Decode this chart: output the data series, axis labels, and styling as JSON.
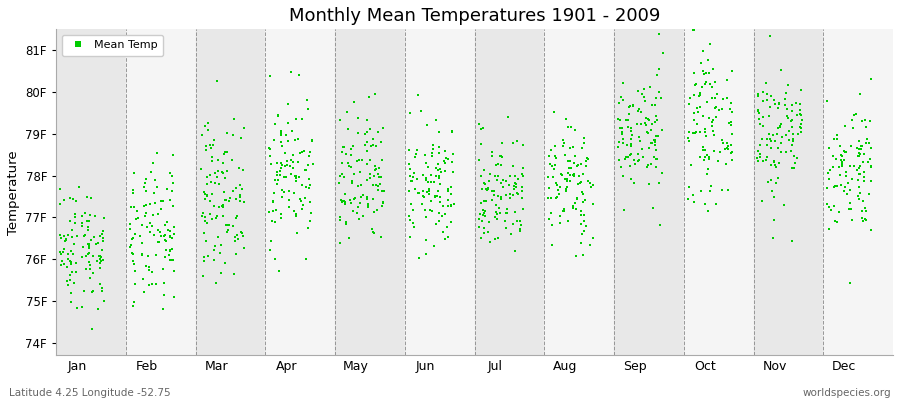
{
  "title": "Monthly Mean Temperatures 1901 - 2009",
  "ylabel": "Temperature",
  "subtitle": "Latitude 4.25 Longitude -52.75",
  "watermark": "worldspecies.org",
  "months": [
    "Jan",
    "Feb",
    "Mar",
    "Apr",
    "May",
    "Jun",
    "Jul",
    "Aug",
    "Sep",
    "Oct",
    "Nov",
    "Dec"
  ],
  "yticks": [
    74,
    75,
    76,
    77,
    78,
    79,
    80,
    81
  ],
  "ylim": [
    73.7,
    81.5
  ],
  "n_years": 109,
  "seed": 42,
  "dot_color": "#00cc00",
  "dot_size": 2.5,
  "background_color": "#ffffff",
  "band_color_light": "#f5f5f5",
  "band_color_dark": "#e8e8e8",
  "mean_temps_f": [
    76.3,
    76.5,
    77.5,
    78.1,
    77.8,
    77.7,
    77.6,
    77.8,
    79.0,
    79.2,
    79.0,
    78.2
  ],
  "std_temps": [
    0.75,
    0.85,
    0.9,
    0.9,
    0.85,
    0.75,
    0.7,
    0.75,
    0.75,
    0.85,
    0.85,
    0.8
  ]
}
